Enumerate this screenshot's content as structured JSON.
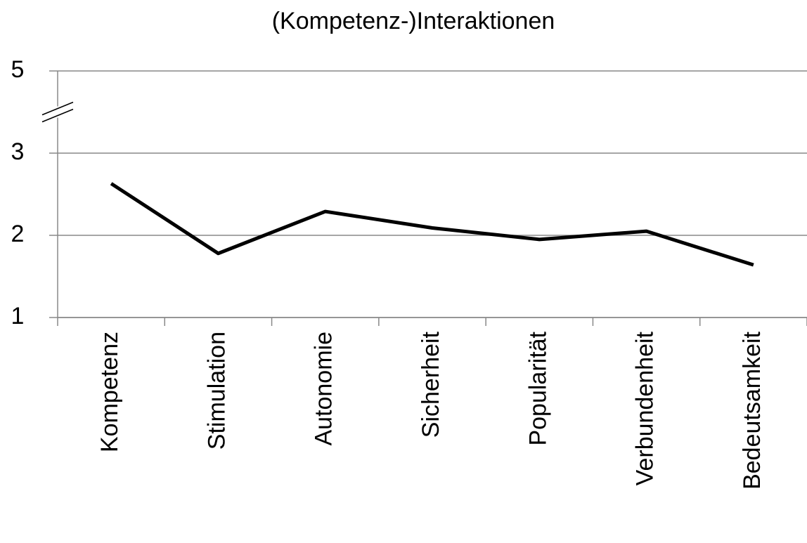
{
  "chart_data": {
    "type": "line",
    "title": "(Kompetenz-)Interaktionen",
    "categories": [
      "Kompetenz",
      "Stimulation",
      "Autonomie",
      "Sicherheit",
      "Popularität",
      "Verbundenheit",
      "Bedeutsamkeit"
    ],
    "series": [
      {
        "name": "Interaktionen",
        "color": "#000000",
        "values": [
          2.63,
          1.78,
          2.29,
          2.09,
          1.95,
          2.05,
          1.64
        ]
      }
    ],
    "ylim": [
      1,
      5
    ],
    "yticks": [
      1,
      2,
      3,
      5
    ],
    "axis_break": [
      3,
      5
    ],
    "grid": true
  }
}
